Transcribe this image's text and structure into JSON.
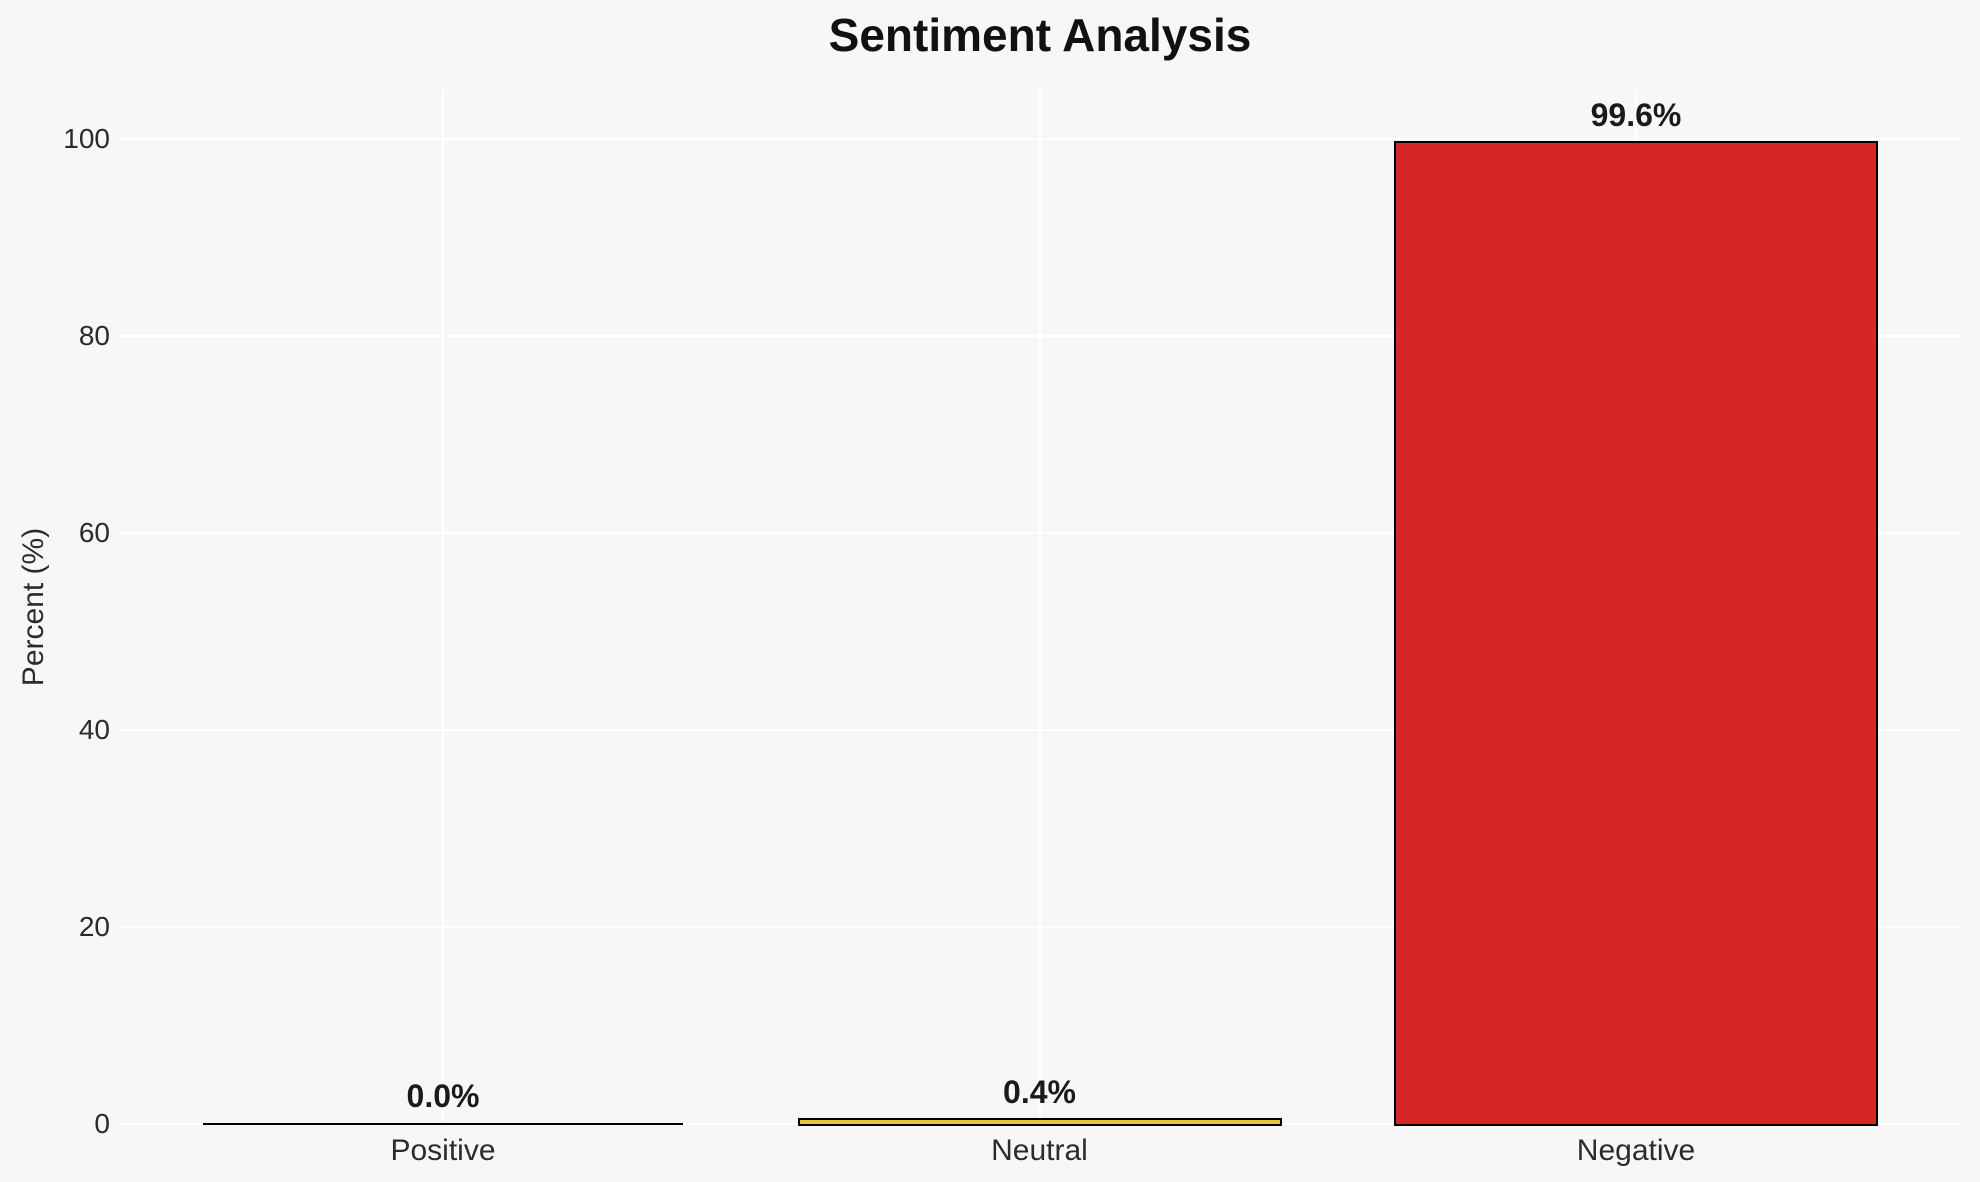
{
  "chart_data": {
    "type": "bar",
    "title": "Sentiment Analysis",
    "xlabel": "",
    "ylabel": "Percent (%)",
    "categories": [
      "Positive",
      "Neutral",
      "Negative"
    ],
    "values": [
      0.0,
      0.4,
      99.6
    ],
    "value_labels": [
      "0.0%",
      "0.4%",
      "99.6%"
    ],
    "bar_colors": [
      "#808080",
      "#e3c83c",
      "#d62728"
    ],
    "bar_edge_color": "#000000",
    "yticks": [
      0,
      20,
      40,
      60,
      80,
      100
    ],
    "ytick_labels": [
      "0",
      "20",
      "40",
      "60",
      "80",
      "100"
    ],
    "ylim": [
      0,
      105
    ],
    "grid": true,
    "grid_color": "#ffffff",
    "background_color": "#f7f7f8",
    "legend": "none",
    "text_color": "#2b2b2b"
  }
}
